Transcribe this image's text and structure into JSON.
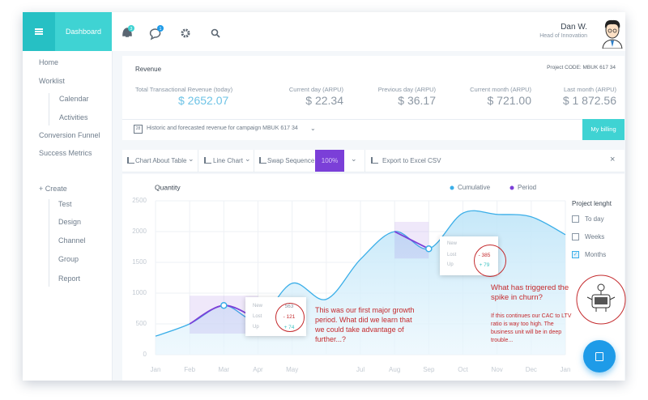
{
  "header": {
    "brand": "Dashboard",
    "notifications": "3",
    "messages": "1",
    "user_name": "Dan W.",
    "user_role": "Head of Innovation"
  },
  "sidebar": {
    "items": [
      "Home",
      "Worklist",
      "Calendar",
      "Activities",
      "Conversion Funnel",
      "Success Metrics"
    ],
    "create": "+ Create",
    "create_items": [
      "Test",
      "Design",
      "Channel",
      "Group",
      "Report"
    ]
  },
  "revenue": {
    "title": "Revenue",
    "project_code": "Project CODE: MBUK 617 34",
    "metrics": [
      {
        "label": "Total Transactional Revenue (today)",
        "value": "$ 2652.07"
      },
      {
        "label": "Current day (ARPU)",
        "value": "$ 22.34"
      },
      {
        "label": "Previous day (ARPU)",
        "value": "$ 36.17"
      },
      {
        "label": "Current month (ARPU)",
        "value": "$ 721.00"
      },
      {
        "label": "Last month (ARPU)",
        "value": "$ 1 872.56"
      }
    ],
    "date_icon": "28",
    "footer": "Historic and forecasted revenue for campaign MBUK 617 34",
    "button": "My billing"
  },
  "toolbar": {
    "items": [
      "Chart About Table",
      "Line Chart",
      "Swap Sequence",
      "100%",
      "Export to Excel CSV"
    ]
  },
  "chart_data": {
    "type": "line",
    "y_label": "Quantity",
    "categories": [
      "Jan",
      "Feb",
      "Mar",
      "Apr",
      "May",
      null,
      "Jul",
      "Aug",
      "Sep",
      "Oct",
      "Nov",
      "Dec",
      "Jan"
    ],
    "series": [
      {
        "name": "Cumulative",
        "color": "#3aaee8",
        "values": [
          300,
          500,
          800,
          565,
          1160,
          900,
          1550,
          2000,
          1720,
          2300,
          2280,
          2240,
          1950
        ]
      },
      {
        "name": "Period",
        "color": "#7b3fd8",
        "values": [
          null,
          500,
          800,
          565,
          null,
          null,
          null,
          2000,
          1720,
          null,
          null,
          null,
          null
        ]
      }
    ],
    "ylim": [
      0,
      2500
    ],
    "yticks": [
      0,
      500,
      1000,
      1500,
      2000,
      2500
    ],
    "grid": true,
    "legend": "top-right"
  },
  "tooltips": [
    {
      "rows": [
        {
          "label": "New",
          "value": "563"
        },
        {
          "label": "Lost",
          "value": "- 121"
        },
        {
          "label": "Up",
          "value": "+ 74"
        }
      ]
    },
    {
      "rows": [
        {
          "label": "New",
          "value": ""
        },
        {
          "label": "Lost",
          "value": "- 385"
        },
        {
          "label": "Up",
          "value": "+ 79"
        }
      ]
    }
  ],
  "annotations": [
    "This was our first major growth period. What did we learn that we could take advantage of further...?",
    "What has triggered the spike in churn?",
    "If this continues our CAC to LTV ratio is way too high. The business unit will be in deep trouble..."
  ],
  "options": {
    "title": "Project lenght",
    "items": [
      {
        "label": "To day",
        "checked": false
      },
      {
        "label": "Weeks",
        "checked": false
      },
      {
        "label": "Months",
        "checked": true
      }
    ]
  }
}
